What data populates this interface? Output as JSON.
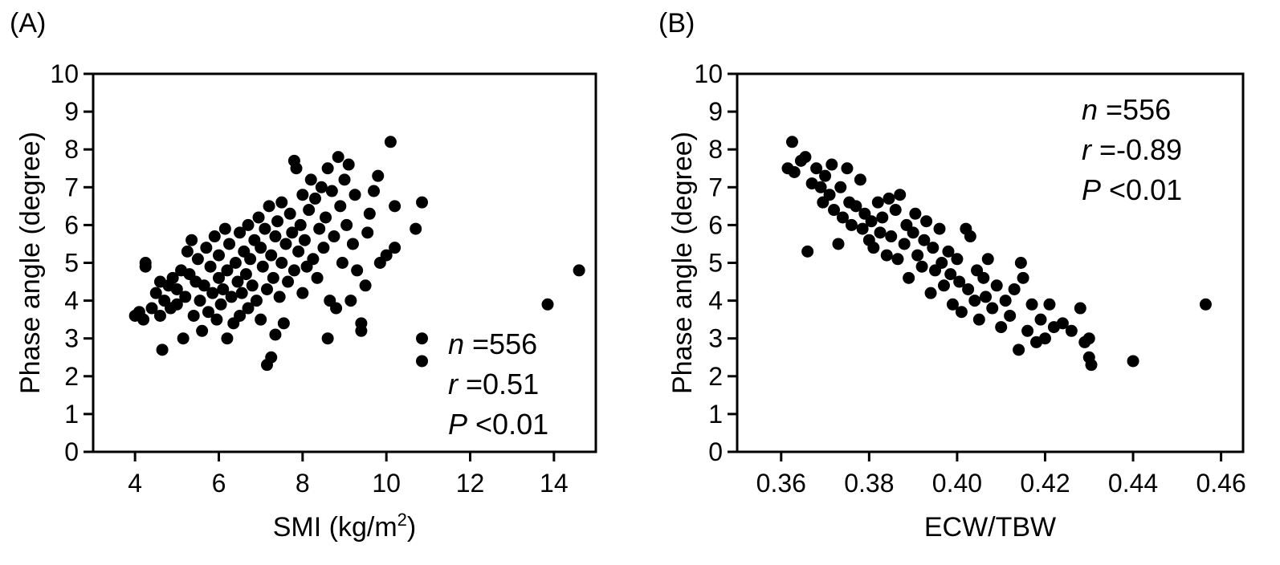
{
  "chart_data": [
    {
      "type": "scatter",
      "panel_label": "(A)",
      "title": "",
      "xlabel": "SMI (kg/m",
      "xlabel_superscript": "2",
      "xlabel_suffix": ")",
      "ylabel": "Phase angle (degree)",
      "xlim": [
        3,
        15
      ],
      "ylim": [
        0,
        10
      ],
      "xticks": [
        4,
        6,
        8,
        10,
        12,
        14
      ],
      "xtick_labels": [
        "4",
        "6",
        "8",
        "10",
        "12",
        "14"
      ],
      "yticks": [
        0,
        1,
        2,
        3,
        4,
        5,
        6,
        7,
        8,
        9,
        10
      ],
      "ytick_labels": [
        "0",
        "1",
        "2",
        "3",
        "4",
        "5",
        "6",
        "7",
        "8",
        "9",
        "10"
      ],
      "grid": false,
      "point_color": "#000000",
      "annotation_position": "bottom-right",
      "annotations": [
        {
          "symbol": "n",
          "text": " =556"
        },
        {
          "symbol": "r",
          "text": " =0.51"
        },
        {
          "symbol": "P",
          "text": " <0.01"
        }
      ],
      "points": [
        [
          4.0,
          3.6
        ],
        [
          4.1,
          3.7
        ],
        [
          4.2,
          3.5
        ],
        [
          4.25,
          5.0
        ],
        [
          4.25,
          4.9
        ],
        [
          4.4,
          3.8
        ],
        [
          4.5,
          4.2
        ],
        [
          4.6,
          4.5
        ],
        [
          4.6,
          3.6
        ],
        [
          4.65,
          2.7
        ],
        [
          4.7,
          4.0
        ],
        [
          4.8,
          4.4
        ],
        [
          4.85,
          3.8
        ],
        [
          4.9,
          4.6
        ],
        [
          5.0,
          4.3
        ],
        [
          5.0,
          3.9
        ],
        [
          5.1,
          4.8
        ],
        [
          5.15,
          3.0
        ],
        [
          5.2,
          4.1
        ],
        [
          5.25,
          5.3
        ],
        [
          5.3,
          4.7
        ],
        [
          5.35,
          5.6
        ],
        [
          5.4,
          3.6
        ],
        [
          5.45,
          4.5
        ],
        [
          5.5,
          5.1
        ],
        [
          5.55,
          4.0
        ],
        [
          5.6,
          3.2
        ],
        [
          5.65,
          4.4
        ],
        [
          5.7,
          5.4
        ],
        [
          5.75,
          3.7
        ],
        [
          5.8,
          4.9
        ],
        [
          5.85,
          4.2
        ],
        [
          5.9,
          5.7
        ],
        [
          5.95,
          3.5
        ],
        [
          6.0,
          4.6
        ],
        [
          6.0,
          5.2
        ],
        [
          6.05,
          3.9
        ],
        [
          6.1,
          4.3
        ],
        [
          6.15,
          5.9
        ],
        [
          6.2,
          3.0
        ],
        [
          6.2,
          4.8
        ],
        [
          6.25,
          5.5
        ],
        [
          6.3,
          4.1
        ],
        [
          6.35,
          3.4
        ],
        [
          6.4,
          5.0
        ],
        [
          6.45,
          4.5
        ],
        [
          6.5,
          5.8
        ],
        [
          6.5,
          3.6
        ],
        [
          6.55,
          4.2
        ],
        [
          6.6,
          5.3
        ],
        [
          6.65,
          4.7
        ],
        [
          6.7,
          6.0
        ],
        [
          6.7,
          3.8
        ],
        [
          6.75,
          5.1
        ],
        [
          6.8,
          4.4
        ],
        [
          6.85,
          5.6
        ],
        [
          6.9,
          4.0
        ],
        [
          6.95,
          6.2
        ],
        [
          7.0,
          3.5
        ],
        [
          7.0,
          5.4
        ],
        [
          7.05,
          4.9
        ],
        [
          7.1,
          5.9
        ],
        [
          7.15,
          2.3
        ],
        [
          7.15,
          4.3
        ],
        [
          7.2,
          6.5
        ],
        [
          7.25,
          2.5
        ],
        [
          7.25,
          5.2
        ],
        [
          7.3,
          4.6
        ],
        [
          7.35,
          3.1
        ],
        [
          7.35,
          5.7
        ],
        [
          7.4,
          6.1
        ],
        [
          7.45,
          4.1
        ],
        [
          7.5,
          5.0
        ],
        [
          7.5,
          6.6
        ],
        [
          7.55,
          3.4
        ],
        [
          7.6,
          5.5
        ],
        [
          7.65,
          4.5
        ],
        [
          7.7,
          6.3
        ],
        [
          7.75,
          5.8
        ],
        [
          7.8,
          7.7
        ],
        [
          7.8,
          4.8
        ],
        [
          7.85,
          7.5
        ],
        [
          7.9,
          5.3
        ],
        [
          7.95,
          6.0
        ],
        [
          8.0,
          4.2
        ],
        [
          8.0,
          6.8
        ],
        [
          8.05,
          5.6
        ],
        [
          8.1,
          4.9
        ],
        [
          8.15,
          6.4
        ],
        [
          8.2,
          7.2
        ],
        [
          8.25,
          5.1
        ],
        [
          8.3,
          6.7
        ],
        [
          8.35,
          4.6
        ],
        [
          8.4,
          5.9
        ],
        [
          8.45,
          7.0
        ],
        [
          8.5,
          5.4
        ],
        [
          8.55,
          6.2
        ],
        [
          8.6,
          7.5
        ],
        [
          8.6,
          3.0
        ],
        [
          8.65,
          4.0
        ],
        [
          8.7,
          6.9
        ],
        [
          8.75,
          5.7
        ],
        [
          8.8,
          3.8
        ],
        [
          8.85,
          7.8
        ],
        [
          8.9,
          6.5
        ],
        [
          8.95,
          5.0
        ],
        [
          9.0,
          7.2
        ],
        [
          9.05,
          6.0
        ],
        [
          9.1,
          7.6
        ],
        [
          9.15,
          4.0
        ],
        [
          9.2,
          5.5
        ],
        [
          9.25,
          6.8
        ],
        [
          9.3,
          4.8
        ],
        [
          9.4,
          3.4
        ],
        [
          9.4,
          3.2
        ],
        [
          9.5,
          4.4
        ],
        [
          9.55,
          5.8
        ],
        [
          9.6,
          6.3
        ],
        [
          9.7,
          6.9
        ],
        [
          9.8,
          7.3
        ],
        [
          9.85,
          5.0
        ],
        [
          10.0,
          5.2
        ],
        [
          10.1,
          8.2
        ],
        [
          10.2,
          6.5
        ],
        [
          10.2,
          5.4
        ],
        [
          10.7,
          5.9
        ],
        [
          10.85,
          6.6
        ],
        [
          10.85,
          3.0
        ],
        [
          10.85,
          2.4
        ],
        [
          13.85,
          3.9
        ],
        [
          14.6,
          4.8
        ]
      ]
    },
    {
      "type": "scatter",
      "panel_label": "(B)",
      "title": "",
      "xlabel": "ECW/TBW",
      "ylabel": "Phase angle (degree)",
      "xlim": [
        0.35,
        0.465
      ],
      "ylim": [
        0,
        10
      ],
      "xticks": [
        0.36,
        0.38,
        0.4,
        0.42,
        0.44,
        0.46
      ],
      "xtick_labels": [
        "0.36",
        "0.38",
        "0.40",
        "0.42",
        "0.44",
        "0.46"
      ],
      "yticks": [
        0,
        1,
        2,
        3,
        4,
        5,
        6,
        7,
        8,
        9,
        10
      ],
      "ytick_labels": [
        "0",
        "1",
        "2",
        "3",
        "4",
        "5",
        "6",
        "7",
        "8",
        "9",
        "10"
      ],
      "grid": false,
      "point_color": "#000000",
      "annotation_position": "top-right",
      "annotations": [
        {
          "symbol": "n",
          "text": " =556"
        },
        {
          "symbol": "r",
          "text": " =-0.89"
        },
        {
          "symbol": "P",
          "text": " <0.01"
        }
      ],
      "points": [
        [
          0.3625,
          8.2
        ],
        [
          0.3615,
          7.5
        ],
        [
          0.363,
          7.4
        ],
        [
          0.3645,
          7.7
        ],
        [
          0.3655,
          7.8
        ],
        [
          0.366,
          5.3
        ],
        [
          0.367,
          7.1
        ],
        [
          0.368,
          7.5
        ],
        [
          0.369,
          7.0
        ],
        [
          0.3695,
          6.6
        ],
        [
          0.37,
          7.3
        ],
        [
          0.371,
          6.8
        ],
        [
          0.3715,
          7.6
        ],
        [
          0.372,
          6.4
        ],
        [
          0.373,
          5.5
        ],
        [
          0.3735,
          7.0
        ],
        [
          0.374,
          6.2
        ],
        [
          0.375,
          7.5
        ],
        [
          0.3755,
          6.6
        ],
        [
          0.376,
          6.0
        ],
        [
          0.377,
          6.5
        ],
        [
          0.378,
          7.2
        ],
        [
          0.3785,
          5.9
        ],
        [
          0.379,
          6.3
        ],
        [
          0.38,
          5.6
        ],
        [
          0.3805,
          6.1
        ],
        [
          0.381,
          5.4
        ],
        [
          0.382,
          6.6
        ],
        [
          0.3825,
          5.8
        ],
        [
          0.383,
          6.2
        ],
        [
          0.384,
          5.2
        ],
        [
          0.3845,
          6.7
        ],
        [
          0.385,
          5.7
        ],
        [
          0.386,
          6.4
        ],
        [
          0.3865,
          5.1
        ],
        [
          0.387,
          6.8
        ],
        [
          0.388,
          5.5
        ],
        [
          0.3885,
          6.0
        ],
        [
          0.389,
          4.6
        ],
        [
          0.39,
          5.8
        ],
        [
          0.3905,
          6.3
        ],
        [
          0.391,
          5.2
        ],
        [
          0.392,
          4.9
        ],
        [
          0.3925,
          5.6
        ],
        [
          0.393,
          6.1
        ],
        [
          0.394,
          4.2
        ],
        [
          0.3945,
          5.4
        ],
        [
          0.395,
          4.8
        ],
        [
          0.396,
          5.9
        ],
        [
          0.3965,
          5.0
        ],
        [
          0.397,
          4.4
        ],
        [
          0.398,
          5.3
        ],
        [
          0.3985,
          4.7
        ],
        [
          0.399,
          3.9
        ],
        [
          0.4,
          5.1
        ],
        [
          0.4005,
          4.5
        ],
        [
          0.401,
          3.7
        ],
        [
          0.402,
          5.9
        ],
        [
          0.4025,
          4.3
        ],
        [
          0.403,
          5.7
        ],
        [
          0.404,
          4.0
        ],
        [
          0.4045,
          4.8
        ],
        [
          0.405,
          3.5
        ],
        [
          0.406,
          4.6
        ],
        [
          0.4065,
          4.1
        ],
        [
          0.407,
          5.1
        ],
        [
          0.408,
          3.8
        ],
        [
          0.409,
          4.4
        ],
        [
          0.41,
          3.3
        ],
        [
          0.411,
          4.0
        ],
        [
          0.412,
          3.6
        ],
        [
          0.413,
          4.3
        ],
        [
          0.414,
          2.7
        ],
        [
          0.4145,
          5.0
        ],
        [
          0.415,
          4.6
        ],
        [
          0.416,
          3.2
        ],
        [
          0.417,
          3.9
        ],
        [
          0.418,
          2.9
        ],
        [
          0.419,
          3.5
        ],
        [
          0.42,
          3.0
        ],
        [
          0.421,
          3.9
        ],
        [
          0.422,
          3.3
        ],
        [
          0.424,
          3.4
        ],
        [
          0.426,
          3.2
        ],
        [
          0.428,
          3.8
        ],
        [
          0.429,
          2.9
        ],
        [
          0.43,
          3.0
        ],
        [
          0.43,
          2.5
        ],
        [
          0.4305,
          2.3
        ],
        [
          0.44,
          2.4
        ],
        [
          0.4565,
          3.9
        ]
      ]
    }
  ]
}
